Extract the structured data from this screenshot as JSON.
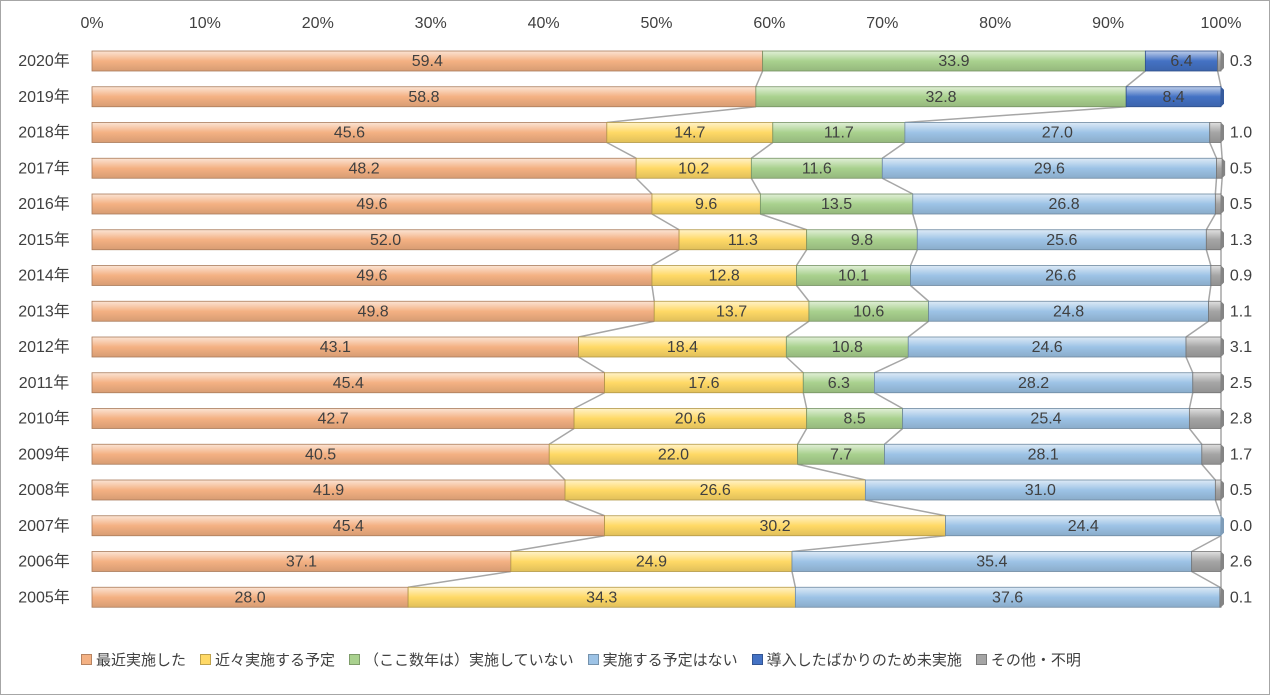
{
  "chart_data": {
    "type": "bar",
    "orientation": "horizontal",
    "stacked": "percent",
    "categories": [
      "2020年",
      "2019年",
      "2018年",
      "2017年",
      "2016年",
      "2015年",
      "2014年",
      "2013年",
      "2012年",
      "2011年",
      "2010年",
      "2009年",
      "2008年",
      "2007年",
      "2006年",
      "2005年"
    ],
    "x_ticks": [
      "0%",
      "10%",
      "20%",
      "30%",
      "40%",
      "50%",
      "60%",
      "70%",
      "80%",
      "90%",
      "100%"
    ],
    "xlim": [
      0,
      100
    ],
    "grid": false,
    "legend_position": "bottom",
    "series": [
      {
        "name": "最近実施した",
        "color": "#f4b183",
        "values": [
          59.4,
          58.8,
          45.6,
          48.2,
          49.6,
          52.0,
          49.6,
          49.8,
          43.1,
          45.4,
          42.7,
          40.5,
          41.9,
          45.4,
          37.1,
          28.0
        ]
      },
      {
        "name": "近々実施する予定",
        "color": "#ffd966",
        "values": [
          null,
          null,
          14.7,
          10.2,
          9.6,
          11.3,
          12.8,
          13.7,
          18.4,
          17.6,
          20.6,
          22.0,
          26.6,
          30.2,
          24.9,
          34.3
        ]
      },
      {
        "name": "（ここ数年は）実施していない",
        "color": "#a9d18e",
        "values": [
          33.9,
          32.8,
          11.7,
          11.6,
          13.5,
          9.8,
          10.1,
          10.6,
          10.8,
          6.3,
          8.5,
          7.7,
          null,
          null,
          null,
          null
        ]
      },
      {
        "name": "実施する予定はない",
        "color": "#9dc3e6",
        "values": [
          null,
          null,
          27.0,
          29.6,
          26.8,
          25.6,
          26.6,
          24.8,
          24.6,
          28.2,
          25.4,
          28.1,
          31.0,
          24.4,
          35.4,
          37.6
        ]
      },
      {
        "name": "導入したばかりのため未実施",
        "color": "#4472c4",
        "values": [
          6.4,
          8.4,
          null,
          null,
          null,
          null,
          null,
          null,
          null,
          null,
          null,
          null,
          null,
          null,
          null,
          null
        ]
      },
      {
        "name": "その他・不明",
        "color": "#a5a5a5",
        "values": [
          0.3,
          null,
          1.0,
          0.5,
          0.5,
          1.3,
          0.9,
          1.1,
          3.1,
          2.5,
          2.8,
          1.7,
          0.5,
          0.0,
          2.6,
          0.1
        ]
      }
    ],
    "outside_labels": [
      "0.3",
      "",
      "1.0",
      "0.5",
      "0.5",
      "1.3",
      "0.9",
      "1.1",
      "3.1",
      "2.5",
      "2.8",
      "1.7",
      "0.5",
      "0.0",
      "2.6",
      "0.1"
    ]
  }
}
